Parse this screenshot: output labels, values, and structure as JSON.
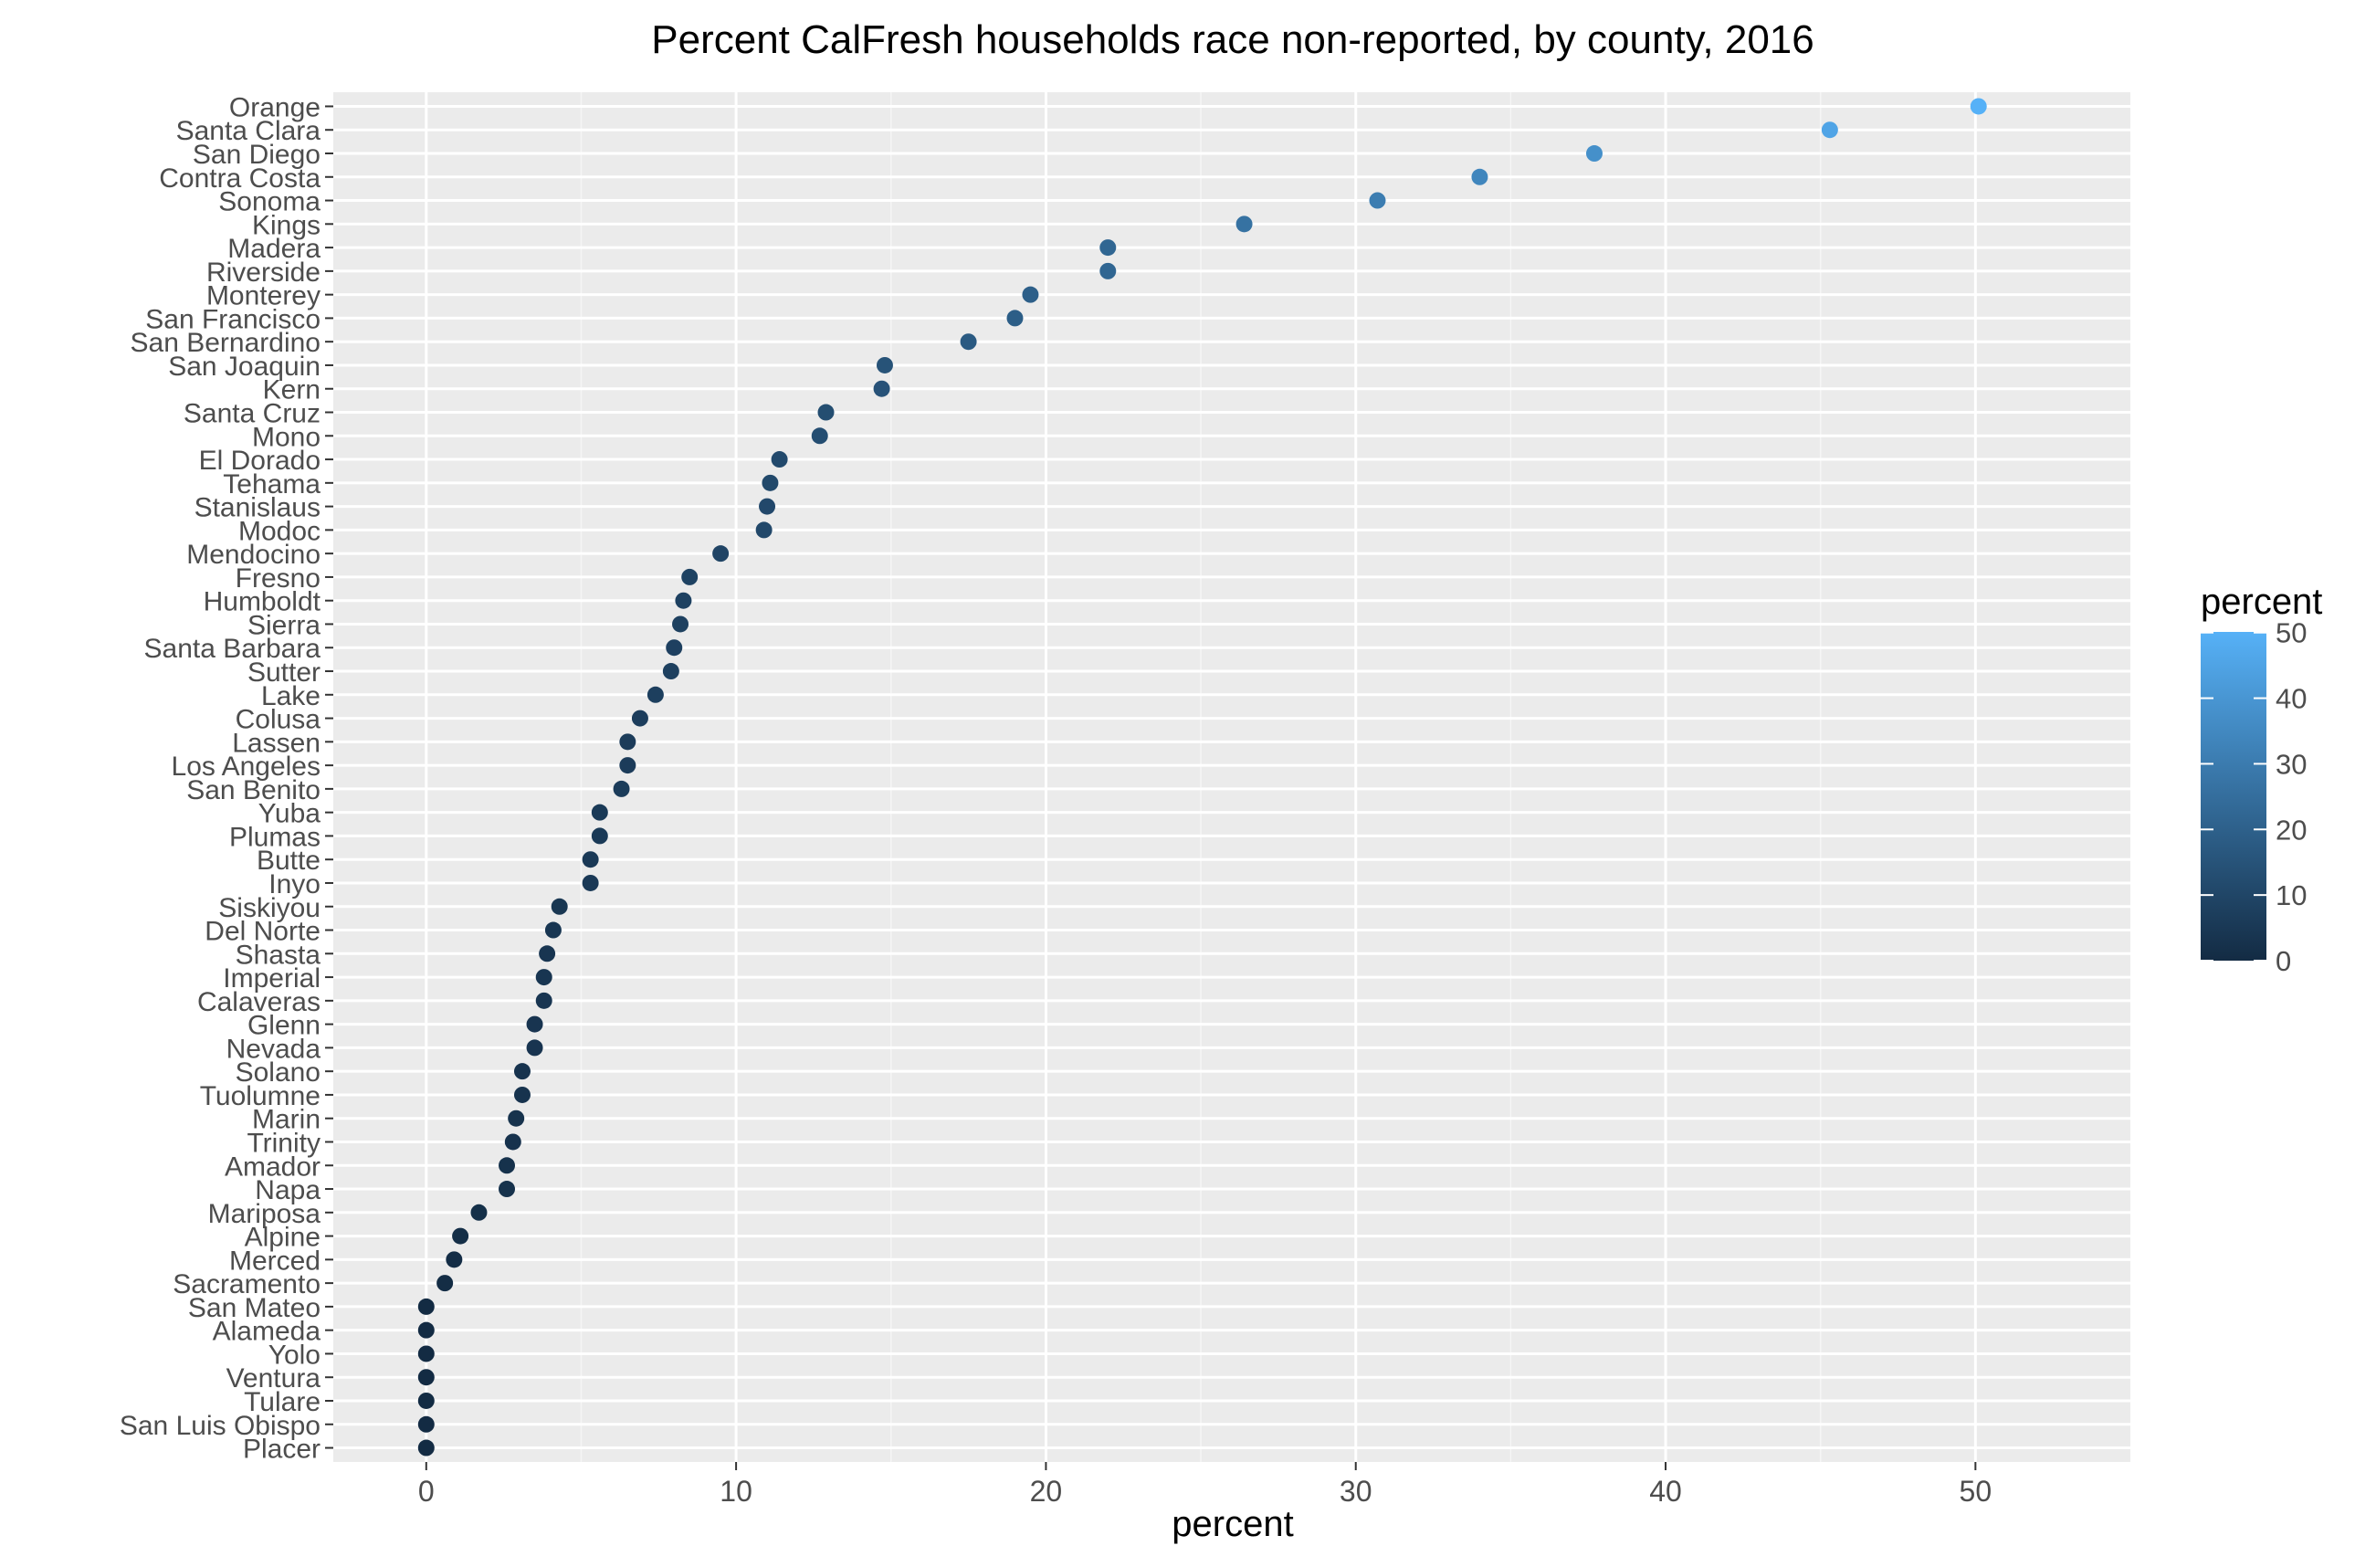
{
  "chart_data": {
    "type": "scatter",
    "title": "Percent CalFresh households race non-reported, by county, 2016",
    "xlabel": "percent",
    "ylabel": "",
    "xlim": [
      -3,
      55
    ],
    "xticks": [
      0,
      10,
      20,
      30,
      40,
      50
    ],
    "grid": true,
    "legend": {
      "title": "percent",
      "placement": "right",
      "ticks": [
        0,
        10,
        20,
        30,
        40,
        50
      ],
      "color_low": "#132B43",
      "color_high": "#56B1F7"
    },
    "categories": [
      "Orange",
      "Santa Clara",
      "San Diego",
      "Contra Costa",
      "Sonoma",
      "Kings",
      "Madera",
      "Riverside",
      "Monterey",
      "San Francisco",
      "San Bernardino",
      "San Joaquin",
      "Kern",
      "Santa Cruz",
      "Mono",
      "El Dorado",
      "Tehama",
      "Stanislaus",
      "Modoc",
      "Mendocino",
      "Fresno",
      "Humboldt",
      "Sierra",
      "Santa Barbara",
      "Sutter",
      "Lake",
      "Colusa",
      "Lassen",
      "Los Angeles",
      "San Benito",
      "Yuba",
      "Plumas",
      "Butte",
      "Inyo",
      "Siskiyou",
      "Del Norte",
      "Shasta",
      "Imperial",
      "Calaveras",
      "Glenn",
      "Nevada",
      "Solano",
      "Tuolumne",
      "Marin",
      "Trinity",
      "Amador",
      "Napa",
      "Mariposa",
      "Alpine",
      "Merced",
      "Sacramento",
      "San Mateo",
      "Alameda",
      "Yolo",
      "Ventura",
      "Tulare",
      "San Luis Obispo",
      "Placer"
    ],
    "values": [
      50.1,
      45.3,
      37.7,
      34.0,
      30.7,
      26.4,
      22.0,
      22.0,
      19.5,
      19.0,
      17.5,
      14.8,
      14.7,
      12.9,
      12.7,
      11.4,
      11.1,
      11.0,
      10.9,
      9.5,
      8.5,
      8.3,
      8.2,
      8.0,
      7.9,
      7.4,
      6.9,
      6.5,
      6.5,
      6.3,
      5.6,
      5.6,
      5.3,
      5.3,
      4.3,
      4.1,
      3.9,
      3.8,
      3.8,
      3.5,
      3.5,
      3.1,
      3.1,
      2.9,
      2.8,
      2.6,
      2.6,
      1.7,
      1.1,
      0.9,
      0.6,
      0.0,
      0.0,
      0.0,
      0.0,
      0.0,
      0.0,
      0.0
    ]
  }
}
